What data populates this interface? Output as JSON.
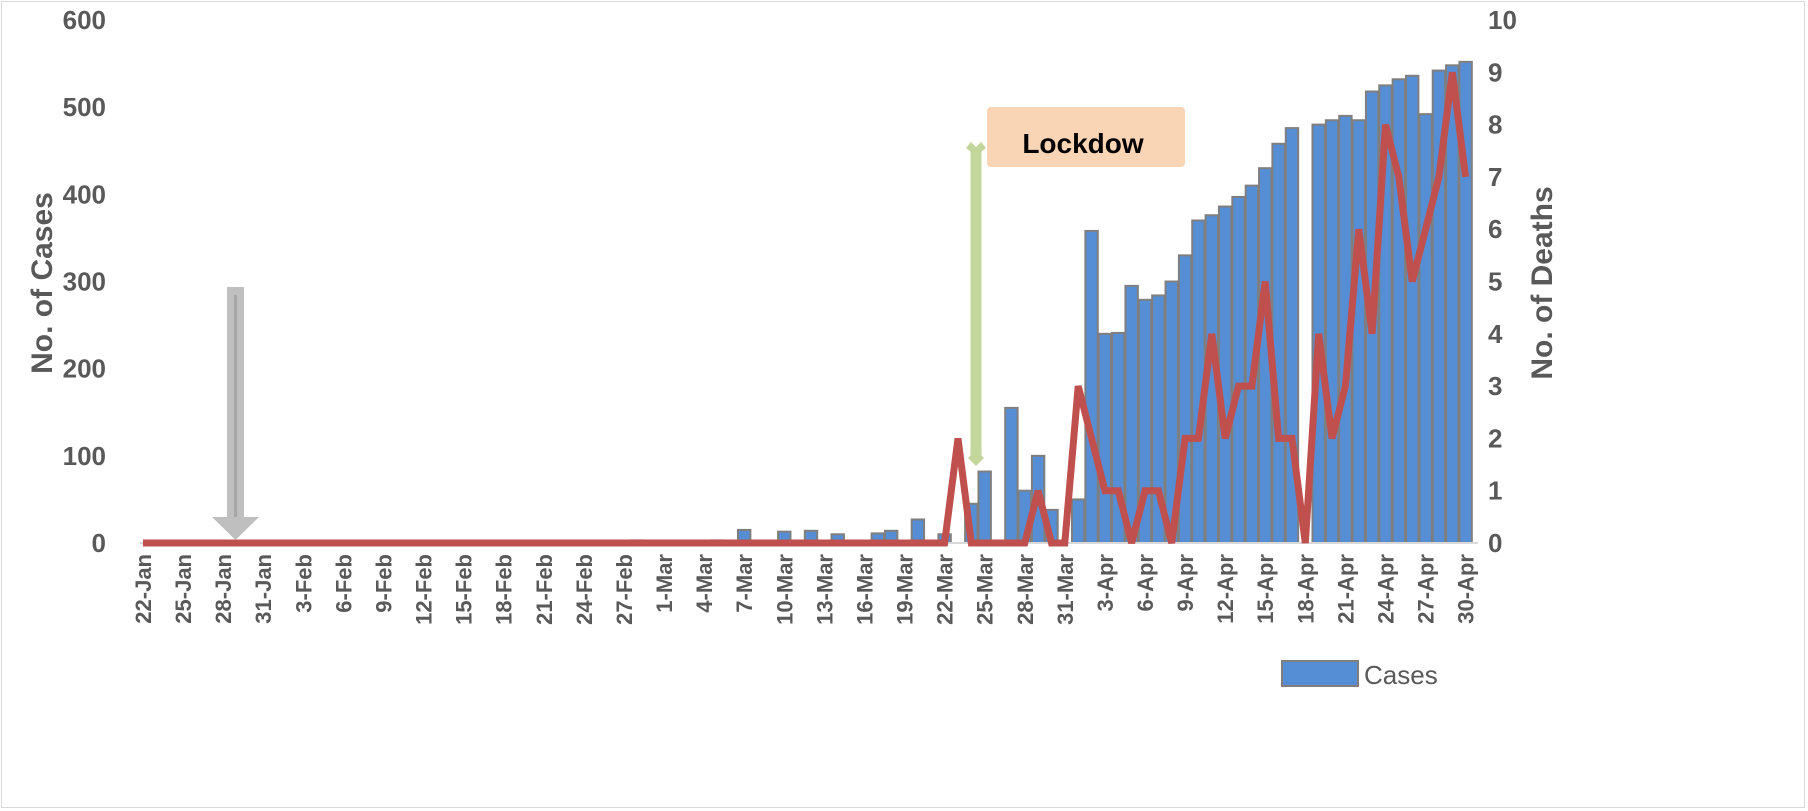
{
  "chart_data": {
    "type": "bar+line",
    "title": "",
    "x_start_date": "22-Jan",
    "x_tick_labels": [
      "22-Jan",
      "25-Jan",
      "28-Jan",
      "31-Jan",
      "3-Feb",
      "6-Feb",
      "9-Feb",
      "12-Feb",
      "15-Feb",
      "18-Feb",
      "21-Feb",
      "24-Feb",
      "27-Feb",
      "1-Mar",
      "4-Mar",
      "7-Mar",
      "10-Mar",
      "13-Mar",
      "16-Mar",
      "19-Mar",
      "22-Mar",
      "25-Mar",
      "28-Mar",
      "31-Mar",
      "3-Apr",
      "6-Apr",
      "9-Apr",
      "12-Apr",
      "15-Apr",
      "18-Apr",
      "21-Apr",
      "24-Apr",
      "27-Apr",
      "30-Apr"
    ],
    "ylabel": "No. of Cases",
    "y2label": "No. of Deaths",
    "ylim": [
      0,
      600
    ],
    "y2lim": [
      0,
      10
    ],
    "yticks": [
      "0",
      "100",
      "200",
      "300",
      "400",
      "500",
      "600"
    ],
    "y2ticks": [
      "0",
      "1",
      "2",
      "3",
      "4",
      "5",
      "6",
      "7",
      "8",
      "9",
      "10"
    ],
    "legend": {
      "label": "Cases",
      "placement": "bottom-right"
    },
    "series": [
      {
        "name": "Cases",
        "type": "bar",
        "axis": "left",
        "color": "#558ED5",
        "values": [
          0,
          0,
          0,
          0,
          0,
          0,
          0,
          0,
          0,
          0,
          0,
          0,
          0,
          0,
          0,
          0,
          0,
          0,
          0,
          0,
          0,
          0,
          0,
          0,
          0,
          0,
          0,
          0,
          0,
          0,
          0,
          0,
          0,
          0,
          0,
          0,
          0,
          3,
          0,
          0,
          0,
          0,
          0,
          3,
          0,
          15,
          0,
          0,
          13,
          0,
          14,
          0,
          10,
          0,
          0,
          11,
          14,
          0,
          27,
          0,
          10,
          0,
          45,
          82,
          0,
          155,
          60,
          100,
          38,
          0,
          50,
          358,
          240,
          241,
          295,
          279,
          284,
          300,
          330,
          370,
          376,
          386,
          397,
          410,
          430,
          458,
          476,
          0,
          480,
          485,
          490,
          485,
          518,
          525,
          532,
          536,
          492,
          542,
          548,
          552
        ]
      },
      {
        "name": "Deaths",
        "type": "line",
        "axis": "right",
        "color": "#C0504D",
        "values": [
          0,
          0,
          0,
          0,
          0,
          0,
          0,
          0,
          0,
          0,
          0,
          0,
          0,
          0,
          0,
          0,
          0,
          0,
          0,
          0,
          0,
          0,
          0,
          0,
          0,
          0,
          0,
          0,
          0,
          0,
          0,
          0,
          0,
          0,
          0,
          0,
          0,
          0,
          0,
          0,
          0,
          0,
          0,
          0,
          0,
          0,
          0,
          0,
          0,
          0,
          0,
          0,
          0,
          0,
          0,
          0,
          0,
          0,
          0,
          0,
          0,
          2,
          0,
          0,
          0,
          0,
          0,
          1,
          0,
          0,
          3,
          2,
          1,
          1,
          0,
          1,
          1,
          0,
          2,
          2,
          4,
          2,
          3,
          3,
          5,
          2,
          2,
          0,
          4,
          2,
          3,
          6,
          4,
          8,
          7,
          5,
          6,
          7,
          9,
          7
        ]
      }
    ],
    "annotations": [
      {
        "text": "Lockdow",
        "date": "24-Mar",
        "color": "#C3D69B",
        "label_bg": "#FAD5B5"
      },
      {
        "text": "",
        "date": "29-Jan",
        "type": "arrow",
        "color": "#A6A6A6"
      }
    ]
  }
}
